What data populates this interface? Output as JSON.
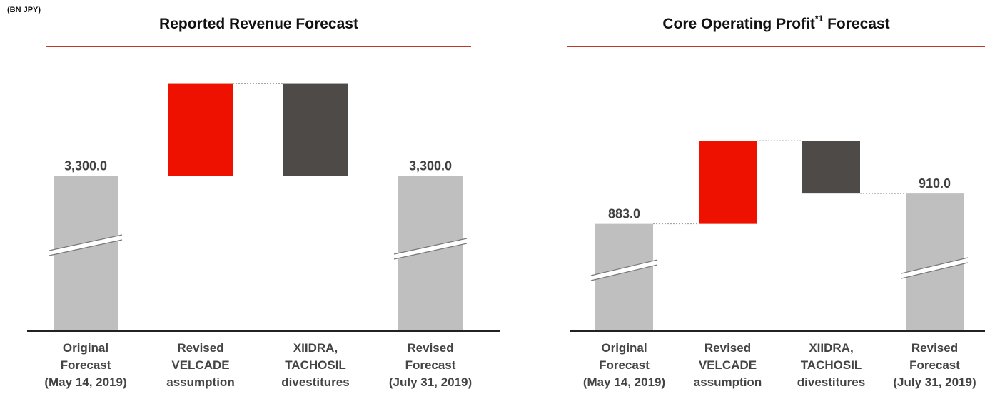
{
  "unit_label": "(BN JPY)",
  "colors": {
    "base_bar": "#bfbfbf",
    "increase_bar": "#ee1100",
    "decrease_bar": "#4e4a48",
    "title_rule": "#c0392b",
    "axis": "#222222",
    "value_text": "#404040"
  },
  "chart_data": [
    {
      "type": "bar",
      "subtype": "waterfall",
      "title": "Reported Revenue Forecast",
      "title_superscript": "",
      "title_suffix": "",
      "axis_break": true,
      "categories": [
        [
          "Original",
          "Forecast",
          "(May 14, 2019)"
        ],
        [
          "Revised",
          "VELCADE",
          "assumption"
        ],
        [
          "XIIDRA,",
          "TACHOSIL",
          "divestitures"
        ],
        [
          "Revised",
          "Forecast",
          "(July 31, 2019)"
        ]
      ],
      "bars": [
        {
          "kind": "total",
          "value": 3300.0,
          "label": "3,300.0"
        },
        {
          "kind": "increase",
          "value": 140.0,
          "label": ""
        },
        {
          "kind": "decrease",
          "value": -140.0,
          "label": ""
        },
        {
          "kind": "total",
          "value": 3300.0,
          "label": "3,300.0"
        }
      ],
      "ylim": [
        3070,
        3460
      ]
    },
    {
      "type": "bar",
      "subtype": "waterfall",
      "title": "Core Operating Profit",
      "title_superscript": "*1",
      "title_suffix": " Forecast",
      "axis_break": true,
      "categories": [
        [
          "Original",
          "Forecast",
          "(May 14, 2019)"
        ],
        [
          "Revised",
          "VELCADE",
          "assumption"
        ],
        [
          "XIIDRA,",
          "TACHOSIL",
          "divestitures"
        ],
        [
          "Revised",
          "Forecast",
          "(July 31, 2019)"
        ]
      ],
      "bars": [
        {
          "kind": "total",
          "value": 883.0,
          "label": "883.0"
        },
        {
          "kind": "increase",
          "value": 74.0,
          "label": ""
        },
        {
          "kind": "decrease",
          "value": -47.0,
          "label": ""
        },
        {
          "kind": "total",
          "value": 910.0,
          "label": "910.0"
        }
      ],
      "ylim": [
        790,
        1020
      ]
    }
  ]
}
